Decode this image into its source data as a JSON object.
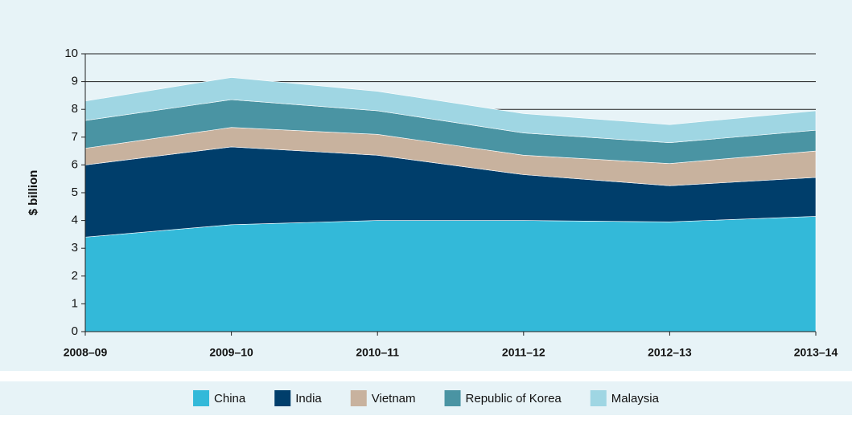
{
  "chart_data": {
    "type": "stacked_area",
    "ylabel": "$ billion",
    "categories": [
      "2008–09",
      "2009–10",
      "2010–11",
      "2011–12",
      "2012–13",
      "2013–14"
    ],
    "series": [
      {
        "name": "China",
        "color": "#33b9d9",
        "values": [
          3.4,
          3.85,
          4.0,
          4.0,
          3.95,
          4.15
        ]
      },
      {
        "name": "India",
        "color": "#003e6b",
        "values": [
          2.6,
          2.8,
          2.35,
          1.65,
          1.3,
          1.4
        ]
      },
      {
        "name": "Vietnam",
        "color": "#c8b29e",
        "values": [
          0.6,
          0.7,
          0.75,
          0.7,
          0.8,
          0.95
        ]
      },
      {
        "name": "Republic of Korea",
        "color": "#4a94a3",
        "values": [
          1.0,
          1.0,
          0.85,
          0.8,
          0.75,
          0.75
        ]
      },
      {
        "name": "Malaysia",
        "color": "#9fd6e3",
        "values": [
          0.7,
          0.8,
          0.7,
          0.7,
          0.65,
          0.7
        ]
      }
    ],
    "ylim": [
      0,
      10
    ],
    "yticks": [
      0,
      1,
      2,
      3,
      4,
      5,
      6,
      7,
      8,
      9,
      10
    ],
    "grid": true,
    "legend": "bottom"
  }
}
